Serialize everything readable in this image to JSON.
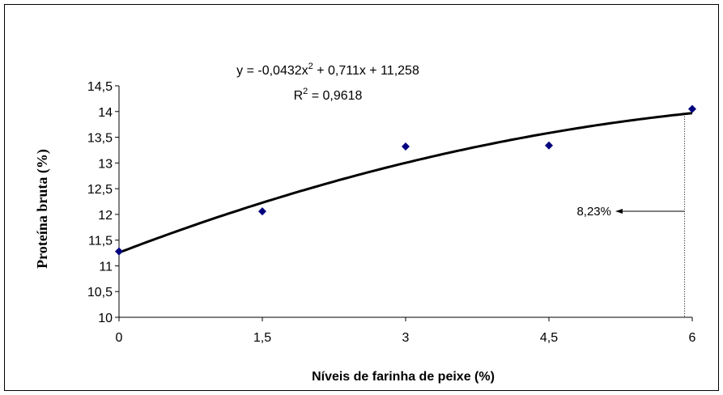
{
  "chart_data": {
    "type": "scatter",
    "x": [
      0,
      1.5,
      3,
      4.5,
      6
    ],
    "y": [
      11.28,
      12.06,
      13.32,
      13.34,
      14.05
    ],
    "xlabel": "Níveis de farinha de peixe (%)",
    "ylabel": "Proteína bruta (%)",
    "xlim": [
      0,
      6
    ],
    "ylim": [
      10,
      14.5
    ],
    "xticks": [
      "0",
      "1,5",
      "3",
      "4,5",
      "6"
    ],
    "xtick_values": [
      0,
      1.5,
      3,
      4.5,
      6
    ],
    "yticks": [
      "10",
      "10,5",
      "11",
      "11,5",
      "12",
      "12,5",
      "13",
      "13,5",
      "14",
      "14,5"
    ],
    "ytick_values": [
      10,
      10.5,
      11,
      11.5,
      12,
      12.5,
      13,
      13.5,
      14,
      14.5
    ],
    "grid": false,
    "trendline": {
      "type": "polynomial",
      "a": -0.0432,
      "b": 0.711,
      "c": 11.258
    },
    "equation_prefix": "y = -0,0432x",
    "equation_sup": "2",
    "equation_suffix": " + 0,711x + 11,258",
    "r2_prefix": "R",
    "r2_sup": "2",
    "r2_suffix": " = 0,9618",
    "annotation": {
      "label": "8,23%",
      "x": 5.92
    },
    "marker_color": "#00007f"
  }
}
